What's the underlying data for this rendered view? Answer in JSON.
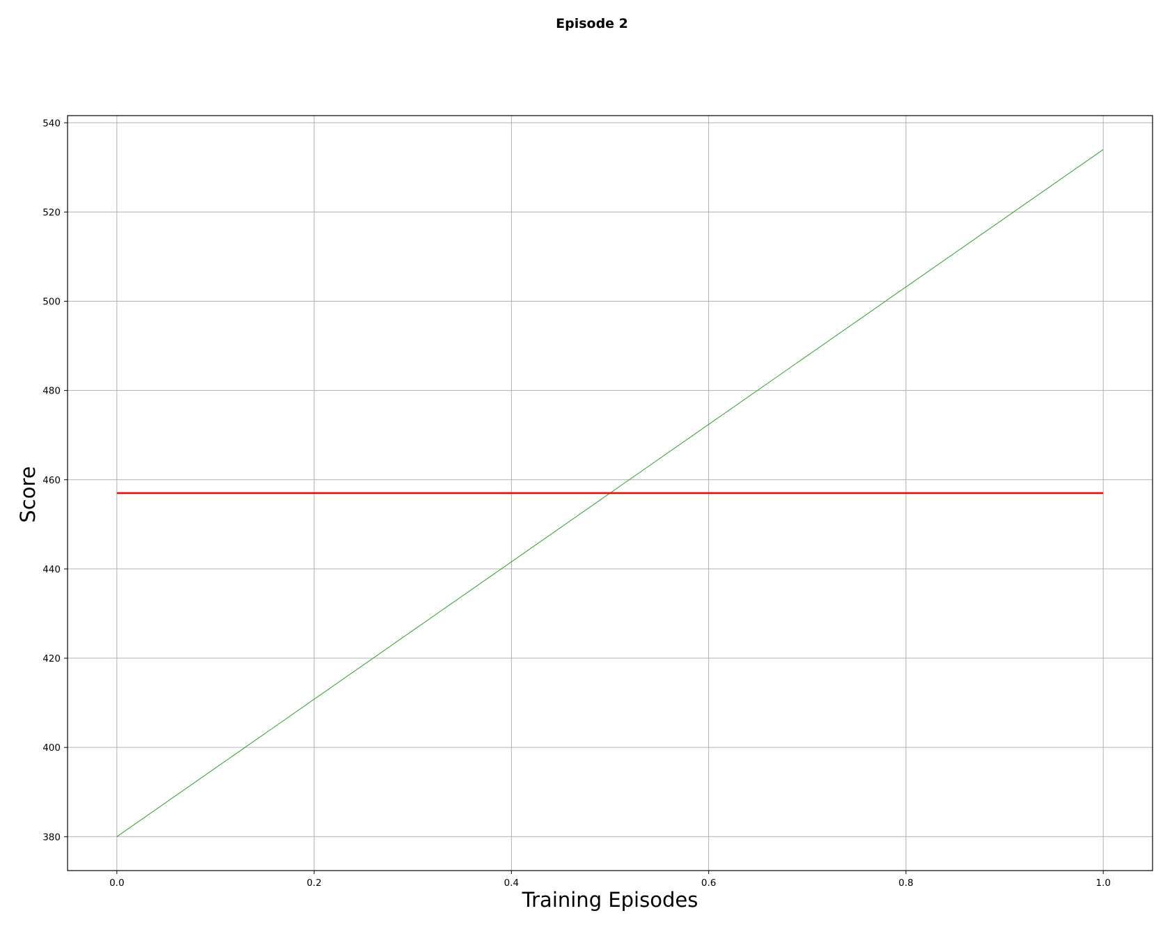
{
  "chart_data": {
    "type": "line",
    "title": "Episode 2",
    "xlabel": "Training Episodes",
    "ylabel": "Score",
    "xlim": [
      -0.05,
      1.05
    ],
    "ylim": [
      372.4,
      541.6
    ],
    "grid": true,
    "x_ticks": [
      0.0,
      0.2,
      0.4,
      0.6,
      0.8,
      1.0
    ],
    "x_tick_labels": [
      "0.0",
      "0.2",
      "0.4",
      "0.6",
      "0.8",
      "1.0"
    ],
    "y_ticks": [
      380,
      400,
      420,
      440,
      460,
      480,
      500,
      520,
      540
    ],
    "y_tick_labels": [
      "380",
      "400",
      "420",
      "440",
      "460",
      "480",
      "500",
      "520",
      "540"
    ],
    "series": [
      {
        "x": [
          0.0,
          1.0
        ],
        "values": [
          380,
          534
        ],
        "color": "#2ca02c",
        "style": "thin"
      },
      {
        "x": [
          0.0,
          1.0
        ],
        "values": [
          457,
          457
        ],
        "color": "#ff0000",
        "style": "thick"
      }
    ]
  }
}
